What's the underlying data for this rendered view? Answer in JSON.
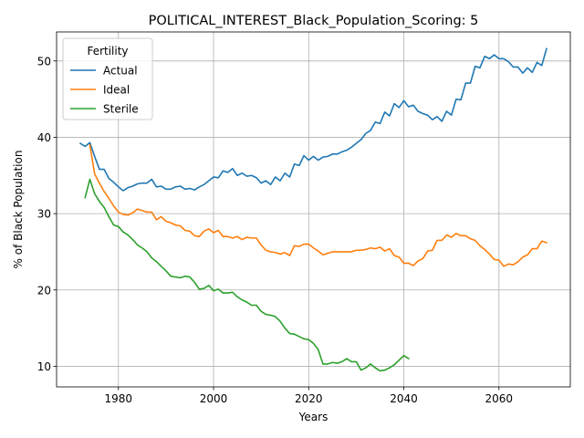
{
  "chart_data": {
    "type": "line",
    "title": "POLITICAL_INTEREST_Black_Population_Scoring: 5",
    "xlabel": "Years",
    "ylabel": "% of Black Population",
    "xlim": [
      1967,
      2075
    ],
    "ylim": [
      7.3,
      53.8
    ],
    "xticks": [
      1980,
      2000,
      2020,
      2040,
      2060
    ],
    "yticks": [
      10,
      20,
      30,
      40,
      50
    ],
    "grid": true,
    "legend": {
      "title": "Fertility",
      "position": "top-left"
    },
    "series": [
      {
        "name": "Actual",
        "color": "#1f77b4",
        "x": [
          1972,
          1973,
          1974,
          1975,
          1976,
          1977,
          1978,
          1979,
          1980,
          1981,
          1982,
          1983,
          1984,
          1985,
          1986,
          1987,
          1988,
          1989,
          1990,
          1991,
          1992,
          1993,
          1994,
          1995,
          1996,
          1997,
          1998,
          1999,
          2000,
          2001,
          2002,
          2003,
          2004,
          2005,
          2006,
          2007,
          2008,
          2009,
          2010,
          2011,
          2012,
          2013,
          2014,
          2015,
          2016,
          2017,
          2018,
          2019,
          2020,
          2021,
          2022,
          2023,
          2024,
          2025,
          2026,
          2027,
          2028,
          2029,
          2030,
          2031,
          2032,
          2033,
          2034,
          2035,
          2036,
          2037,
          2038,
          2039,
          2040,
          2041,
          2042,
          2043,
          2044,
          2045,
          2046,
          2047,
          2048,
          2049,
          2050,
          2051,
          2052,
          2053,
          2054,
          2055,
          2056,
          2057,
          2058,
          2059,
          2060,
          2061,
          2062,
          2063,
          2064,
          2065,
          2066,
          2067,
          2068,
          2069,
          2070
        ],
        "values": [
          39.2,
          38.8,
          39.3,
          37.5,
          35.8,
          35.8,
          34.6,
          34.1,
          33.5,
          33.0,
          33.4,
          33.6,
          33.9,
          34.0,
          34.0,
          34.5,
          33.5,
          33.6,
          33.2,
          33.2,
          33.5,
          33.6,
          33.2,
          33.3,
          33.1,
          33.5,
          33.8,
          34.3,
          34.8,
          34.7,
          35.6,
          35.4,
          35.9,
          35.0,
          35.3,
          34.9,
          35.0,
          34.7,
          34.0,
          34.3,
          33.8,
          34.8,
          34.3,
          35.3,
          34.8,
          36.5,
          36.3,
          37.6,
          37.0,
          37.5,
          37.0,
          37.4,
          37.5,
          37.8,
          37.8,
          38.1,
          38.3,
          38.7,
          39.2,
          39.7,
          40.5,
          40.9,
          42.0,
          41.8,
          43.3,
          42.8,
          44.4,
          43.9,
          44.8,
          44.0,
          44.2,
          43.4,
          43.1,
          42.9,
          42.3,
          42.7,
          42.1,
          43.4,
          42.9,
          45.0,
          44.9,
          47.1,
          47.1,
          49.3,
          49.1,
          50.6,
          50.3,
          50.8,
          50.3,
          50.3,
          49.9,
          49.2,
          49.2,
          48.4,
          49.1,
          48.5,
          49.8,
          49.4,
          51.6
        ]
      },
      {
        "name": "Ideal",
        "color": "#ff7f0e",
        "x": [
          1974,
          1975,
          1976,
          1977,
          1978,
          1979,
          1980,
          1981,
          1982,
          1983,
          1984,
          1985,
          1986,
          1987,
          1988,
          1989,
          1990,
          1991,
          1992,
          1993,
          1994,
          1995,
          1996,
          1997,
          1998,
          1999,
          2000,
          2001,
          2002,
          2003,
          2004,
          2005,
          2006,
          2007,
          2008,
          2009,
          2010,
          2011,
          2012,
          2013,
          2014,
          2015,
          2016,
          2017,
          2018,
          2019,
          2020,
          2021,
          2022,
          2023,
          2024,
          2025,
          2026,
          2027,
          2028,
          2029,
          2030,
          2031,
          2032,
          2033,
          2034,
          2035,
          2036,
          2037,
          2038,
          2039,
          2040,
          2041,
          2042,
          2043,
          2044,
          2045,
          2046,
          2047,
          2048,
          2049,
          2050,
          2051,
          2052,
          2053,
          2054,
          2055,
          2056,
          2057,
          2058,
          2059,
          2060,
          2061,
          2062,
          2063,
          2064,
          2065,
          2066,
          2067,
          2068,
          2069,
          2070
        ],
        "values": [
          39.0,
          35.2,
          34.0,
          32.9,
          32.0,
          31.0,
          30.2,
          29.9,
          29.8,
          30.1,
          30.6,
          30.4,
          30.2,
          30.2,
          29.2,
          29.6,
          29.0,
          28.8,
          28.5,
          28.4,
          27.8,
          27.7,
          27.1,
          27.0,
          27.7,
          28.0,
          27.5,
          27.8,
          27.0,
          27.0,
          26.8,
          27.0,
          26.6,
          26.9,
          26.8,
          26.8,
          25.9,
          25.2,
          25.0,
          24.9,
          24.7,
          24.9,
          24.5,
          25.8,
          25.7,
          26.0,
          26.0,
          25.5,
          25.1,
          24.6,
          24.8,
          25.0,
          25.0,
          25.0,
          25.0,
          25.0,
          25.2,
          25.2,
          25.3,
          25.5,
          25.4,
          25.6,
          25.1,
          25.4,
          24.5,
          24.3,
          23.5,
          23.5,
          23.2,
          23.8,
          24.1,
          25.1,
          25.2,
          26.5,
          26.5,
          27.2,
          26.9,
          27.4,
          27.1,
          27.1,
          26.7,
          26.5,
          25.8,
          25.3,
          24.7,
          24.0,
          23.9,
          23.1,
          23.4,
          23.3,
          23.7,
          24.3,
          24.6,
          25.4,
          25.4,
          26.4,
          26.2
        ]
      },
      {
        "name": "Sterile",
        "color": "#2ca02c",
        "x": [
          1973,
          1974,
          1975,
          1976,
          1977,
          1978,
          1979,
          1980,
          1981,
          1982,
          1983,
          1984,
          1985,
          1986,
          1987,
          1988,
          1989,
          1990,
          1991,
          1992,
          1993,
          1994,
          1995,
          1996,
          1997,
          1998,
          1999,
          2000,
          2001,
          2002,
          2003,
          2004,
          2005,
          2006,
          2007,
          2008,
          2009,
          2010,
          2011,
          2012,
          2013,
          2014,
          2015,
          2016,
          2017,
          2018,
          2019,
          2020,
          2021,
          2022,
          2023,
          2024,
          2025,
          2026,
          2027,
          2028,
          2029,
          2030,
          2031,
          2032,
          2033,
          2034,
          2035,
          2036,
          2037,
          2038,
          2039,
          2040,
          2041
        ],
        "values": [
          32.1,
          34.5,
          32.6,
          31.6,
          30.8,
          29.6,
          28.5,
          28.3,
          27.6,
          27.2,
          26.6,
          25.9,
          25.5,
          25.0,
          24.2,
          23.7,
          23.1,
          22.5,
          21.8,
          21.7,
          21.6,
          21.8,
          21.7,
          21.0,
          20.1,
          20.2,
          20.6,
          19.9,
          20.1,
          19.6,
          19.6,
          19.7,
          19.1,
          18.7,
          18.4,
          18.0,
          18.0,
          17.2,
          16.8,
          16.7,
          16.5,
          15.9,
          15.0,
          14.3,
          14.2,
          13.9,
          13.6,
          13.5,
          13.0,
          12.2,
          10.3,
          10.3,
          10.5,
          10.4,
          10.6,
          11.0,
          10.6,
          10.6,
          9.5,
          9.8,
          10.3,
          9.8,
          9.4,
          9.5,
          9.8,
          10.2,
          10.8,
          11.4,
          11.0
        ]
      }
    ]
  }
}
